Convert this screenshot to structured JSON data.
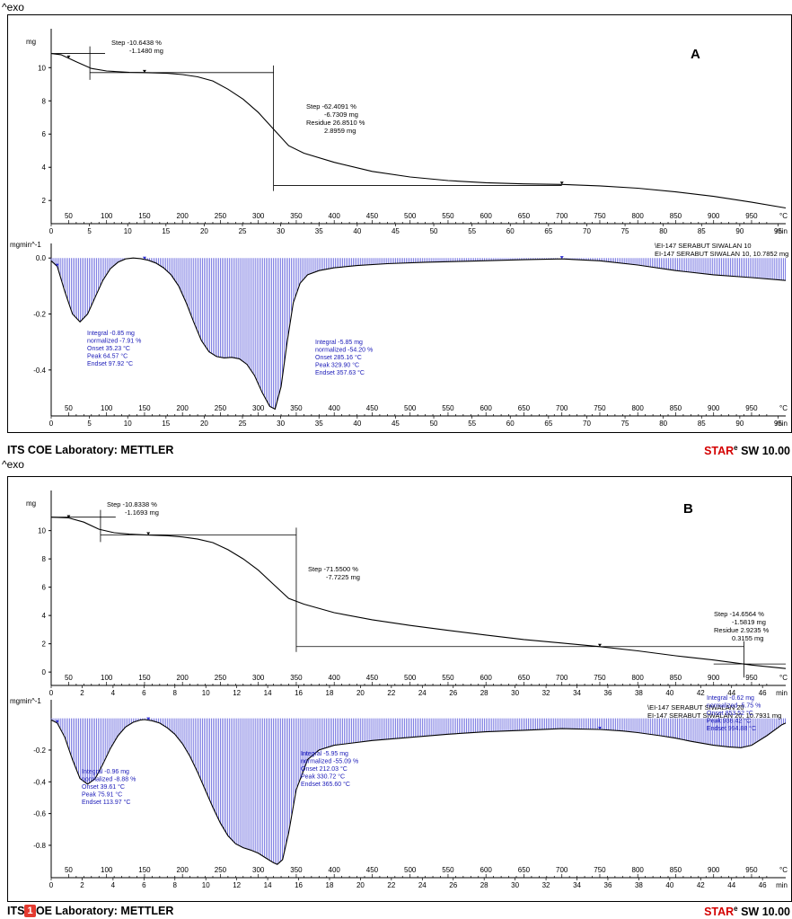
{
  "exo_label": "^exo",
  "footer": {
    "lab": "ITS COE Laboratory: METTLER",
    "star_prefix": "STAR",
    "star_sup": "e",
    "star_suffix": " SW 10.00"
  },
  "badge": "1",
  "chart_data": [
    {
      "panel": "A",
      "type": "line",
      "tg": {
        "ylabel": "mg",
        "ylim": [
          1.2,
          11.8
        ],
        "yticks": [
          2,
          4,
          6,
          8,
          10
        ],
        "temp_ticks": [
          50,
          100,
          150,
          200,
          250,
          300,
          350,
          400,
          450,
          500,
          550,
          600,
          650,
          700,
          750,
          800,
          850,
          900,
          950
        ],
        "temp_unit": "°C",
        "time_ticks": [
          0,
          5,
          10,
          15,
          20,
          25,
          30,
          35,
          40,
          45,
          50,
          55,
          60,
          65,
          70,
          75,
          80,
          85,
          90,
          95
        ],
        "time_unit": "min",
        "x": [
          27,
          40,
          60,
          80,
          100,
          130,
          150,
          180,
          200,
          220,
          240,
          260,
          280,
          300,
          320,
          340,
          360,
          400,
          450,
          500,
          550,
          600,
          650,
          700,
          750,
          800,
          850,
          900,
          950,
          995
        ],
        "y": [
          10.85,
          10.78,
          10.35,
          9.95,
          9.8,
          9.72,
          9.7,
          9.66,
          9.58,
          9.45,
          9.2,
          8.7,
          8.1,
          7.3,
          6.3,
          5.3,
          4.85,
          4.3,
          3.75,
          3.42,
          3.2,
          3.07,
          3.0,
          2.97,
          2.88,
          2.74,
          2.52,
          2.25,
          1.9,
          1.55
        ],
        "steps": [
          {
            "lines": [
              "Step   -10.6438 %",
              "-1.1480 mg"
            ]
          },
          {
            "lines": [
              "Step       -62.4091 %",
              "-6.7309 mg",
              "Residue   26.8510 %",
              "2.8959 mg"
            ]
          }
        ]
      },
      "dtg": {
        "ylabel": "mgmin^-1",
        "ylim": [
          -0.545,
          0.02
        ],
        "yticks": [
          0.0,
          -0.2,
          -0.4
        ],
        "ytick_labels": [
          "0.0",
          "-0.2",
          "-0.4"
        ],
        "x": [
          27,
          35,
          45,
          55,
          65,
          75,
          85,
          95,
          105,
          115,
          125,
          135,
          145,
          155,
          165,
          175,
          185,
          195,
          205,
          215,
          225,
          235,
          245,
          255,
          265,
          275,
          285,
          295,
          305,
          315,
          322,
          330,
          338,
          346,
          355,
          365,
          380,
          400,
          430,
          470,
          520,
          580,
          650,
          700,
          750,
          800,
          850,
          900,
          950,
          995
        ],
        "y": [
          -0.01,
          -0.03,
          -0.12,
          -0.2,
          -0.228,
          -0.2,
          -0.14,
          -0.08,
          -0.038,
          -0.015,
          -0.003,
          0.0,
          -0.002,
          -0.008,
          -0.018,
          -0.035,
          -0.06,
          -0.1,
          -0.16,
          -0.23,
          -0.295,
          -0.335,
          -0.352,
          -0.357,
          -0.355,
          -0.36,
          -0.38,
          -0.42,
          -0.48,
          -0.53,
          -0.54,
          -0.46,
          -0.3,
          -0.16,
          -0.09,
          -0.06,
          -0.045,
          -0.035,
          -0.027,
          -0.02,
          -0.015,
          -0.011,
          -0.006,
          -0.003,
          -0.01,
          -0.025,
          -0.045,
          -0.06,
          -0.07,
          -0.08
        ],
        "legend": [
          "\\EI-147 SERABUT SIWALAN 10",
          "EI-147 SERABUT SIWALAN 10, 10.7852 mg"
        ],
        "integrals": [
          {
            "lines": [
              "Integral          -0.85 mg",
              "normalized   -7.91 %",
              "Onset           35.23 °C",
              "Peak            64.57 °C",
              "Endset          97.92 °C"
            ]
          },
          {
            "lines": [
              "Integral          -5.85 mg",
              "normalized  -54.20 %",
              "Onset          285.16 °C",
              "Peak           329.90 °C",
              "Endset         357.63 °C"
            ]
          }
        ]
      }
    },
    {
      "panel": "B",
      "type": "line",
      "tg": {
        "ylabel": "mg",
        "ylim": [
          -0.5,
          12.2
        ],
        "yticks": [
          0,
          2,
          4,
          6,
          8,
          10
        ],
        "temp_ticks": [
          50,
          100,
          150,
          200,
          250,
          300,
          350,
          400,
          450,
          500,
          550,
          600,
          650,
          700,
          750,
          800,
          850,
          900,
          950
        ],
        "temp_unit": "°C",
        "time_ticks": [
          0,
          2,
          4,
          6,
          8,
          10,
          12,
          14,
          16,
          18,
          20,
          22,
          24,
          26,
          28,
          30,
          32,
          34,
          36,
          38,
          40,
          42,
          44,
          46
        ],
        "time_unit": "min",
        "x": [
          27,
          50,
          70,
          90,
          110,
          130,
          150,
          180,
          200,
          220,
          240,
          260,
          280,
          300,
          320,
          340,
          360,
          400,
          450,
          500,
          550,
          600,
          650,
          700,
          750,
          800,
          850,
          900,
          950,
          995
        ],
        "y": [
          10.95,
          10.9,
          10.6,
          10.1,
          9.85,
          9.75,
          9.7,
          9.64,
          9.55,
          9.4,
          9.15,
          8.65,
          8.0,
          7.2,
          6.2,
          5.2,
          4.8,
          4.2,
          3.7,
          3.3,
          2.95,
          2.62,
          2.3,
          2.05,
          1.8,
          1.5,
          1.15,
          0.85,
          0.5,
          0.25
        ],
        "steps": [
          {
            "lines": [
              "Step   -10.8338 %",
              "-1.1693 mg"
            ]
          },
          {
            "lines": [
              "Step   -71.5500 %",
              "-7.7225 mg"
            ]
          },
          {
            "lines": [
              "Step        -14.6564 %",
              "-1.5819 mg",
              "Residue   2.9235 %",
              "0.3155 mg"
            ]
          }
        ]
      },
      "dtg": {
        "ylabel": "mgmin^-1",
        "ylim": [
          -0.97,
          0.06
        ],
        "yticks": [
          -0.2,
          -0.4,
          -0.6,
          -0.8
        ],
        "ytick_labels": [
          "-0.2",
          "-0.4",
          "-0.6",
          "-0.8"
        ],
        "x": [
          27,
          35,
          45,
          55,
          65,
          75,
          85,
          95,
          105,
          115,
          125,
          135,
          145,
          150,
          160,
          170,
          180,
          190,
          200,
          210,
          220,
          230,
          240,
          250,
          260,
          270,
          280,
          290,
          300,
          310,
          320,
          325,
          332,
          340,
          350,
          365,
          380,
          400,
          450,
          500,
          550,
          600,
          650,
          700,
          750,
          780,
          800,
          830,
          850,
          870,
          900,
          920,
          936,
          950,
          970,
          990,
          995
        ],
        "y": [
          -0.01,
          -0.03,
          -0.12,
          -0.26,
          -0.38,
          -0.415,
          -0.38,
          -0.29,
          -0.19,
          -0.11,
          -0.055,
          -0.025,
          -0.01,
          -0.008,
          -0.015,
          -0.03,
          -0.06,
          -0.1,
          -0.16,
          -0.24,
          -0.34,
          -0.45,
          -0.56,
          -0.66,
          -0.74,
          -0.79,
          -0.815,
          -0.83,
          -0.85,
          -0.88,
          -0.91,
          -0.92,
          -0.89,
          -0.72,
          -0.45,
          -0.26,
          -0.2,
          -0.17,
          -0.14,
          -0.12,
          -0.1,
          -0.085,
          -0.075,
          -0.065,
          -0.07,
          -0.08,
          -0.09,
          -0.11,
          -0.125,
          -0.145,
          -0.17,
          -0.18,
          -0.185,
          -0.17,
          -0.11,
          -0.04,
          -0.03
        ],
        "legend": [
          "\\EI-147 SERABUT SIWALAN 20",
          "EI-147 SERABUT SIWALAN 20, 10.7931 mg"
        ],
        "integrals": [
          {
            "lines": [
              "Integral          -0.96 mg",
              "normalized   -8.88 %",
              "Onset           39.61 °C",
              "Peak            75.91 °C",
              "Endset         113.97 °C"
            ]
          },
          {
            "lines": [
              "Integral          -5.95 mg",
              "normalized  -55.09 %",
              "Onset          212.03 °C",
              "Peak           330.72 °C",
              "Endset         365.60 °C"
            ]
          },
          {
            "lines": [
              "Integral          -0.62 mg",
              "normalized   -5.75 %",
              "Onset          853.52 °C",
              "Peak           936.42 °C",
              "Endset         994.88 °C"
            ]
          }
        ]
      }
    }
  ]
}
